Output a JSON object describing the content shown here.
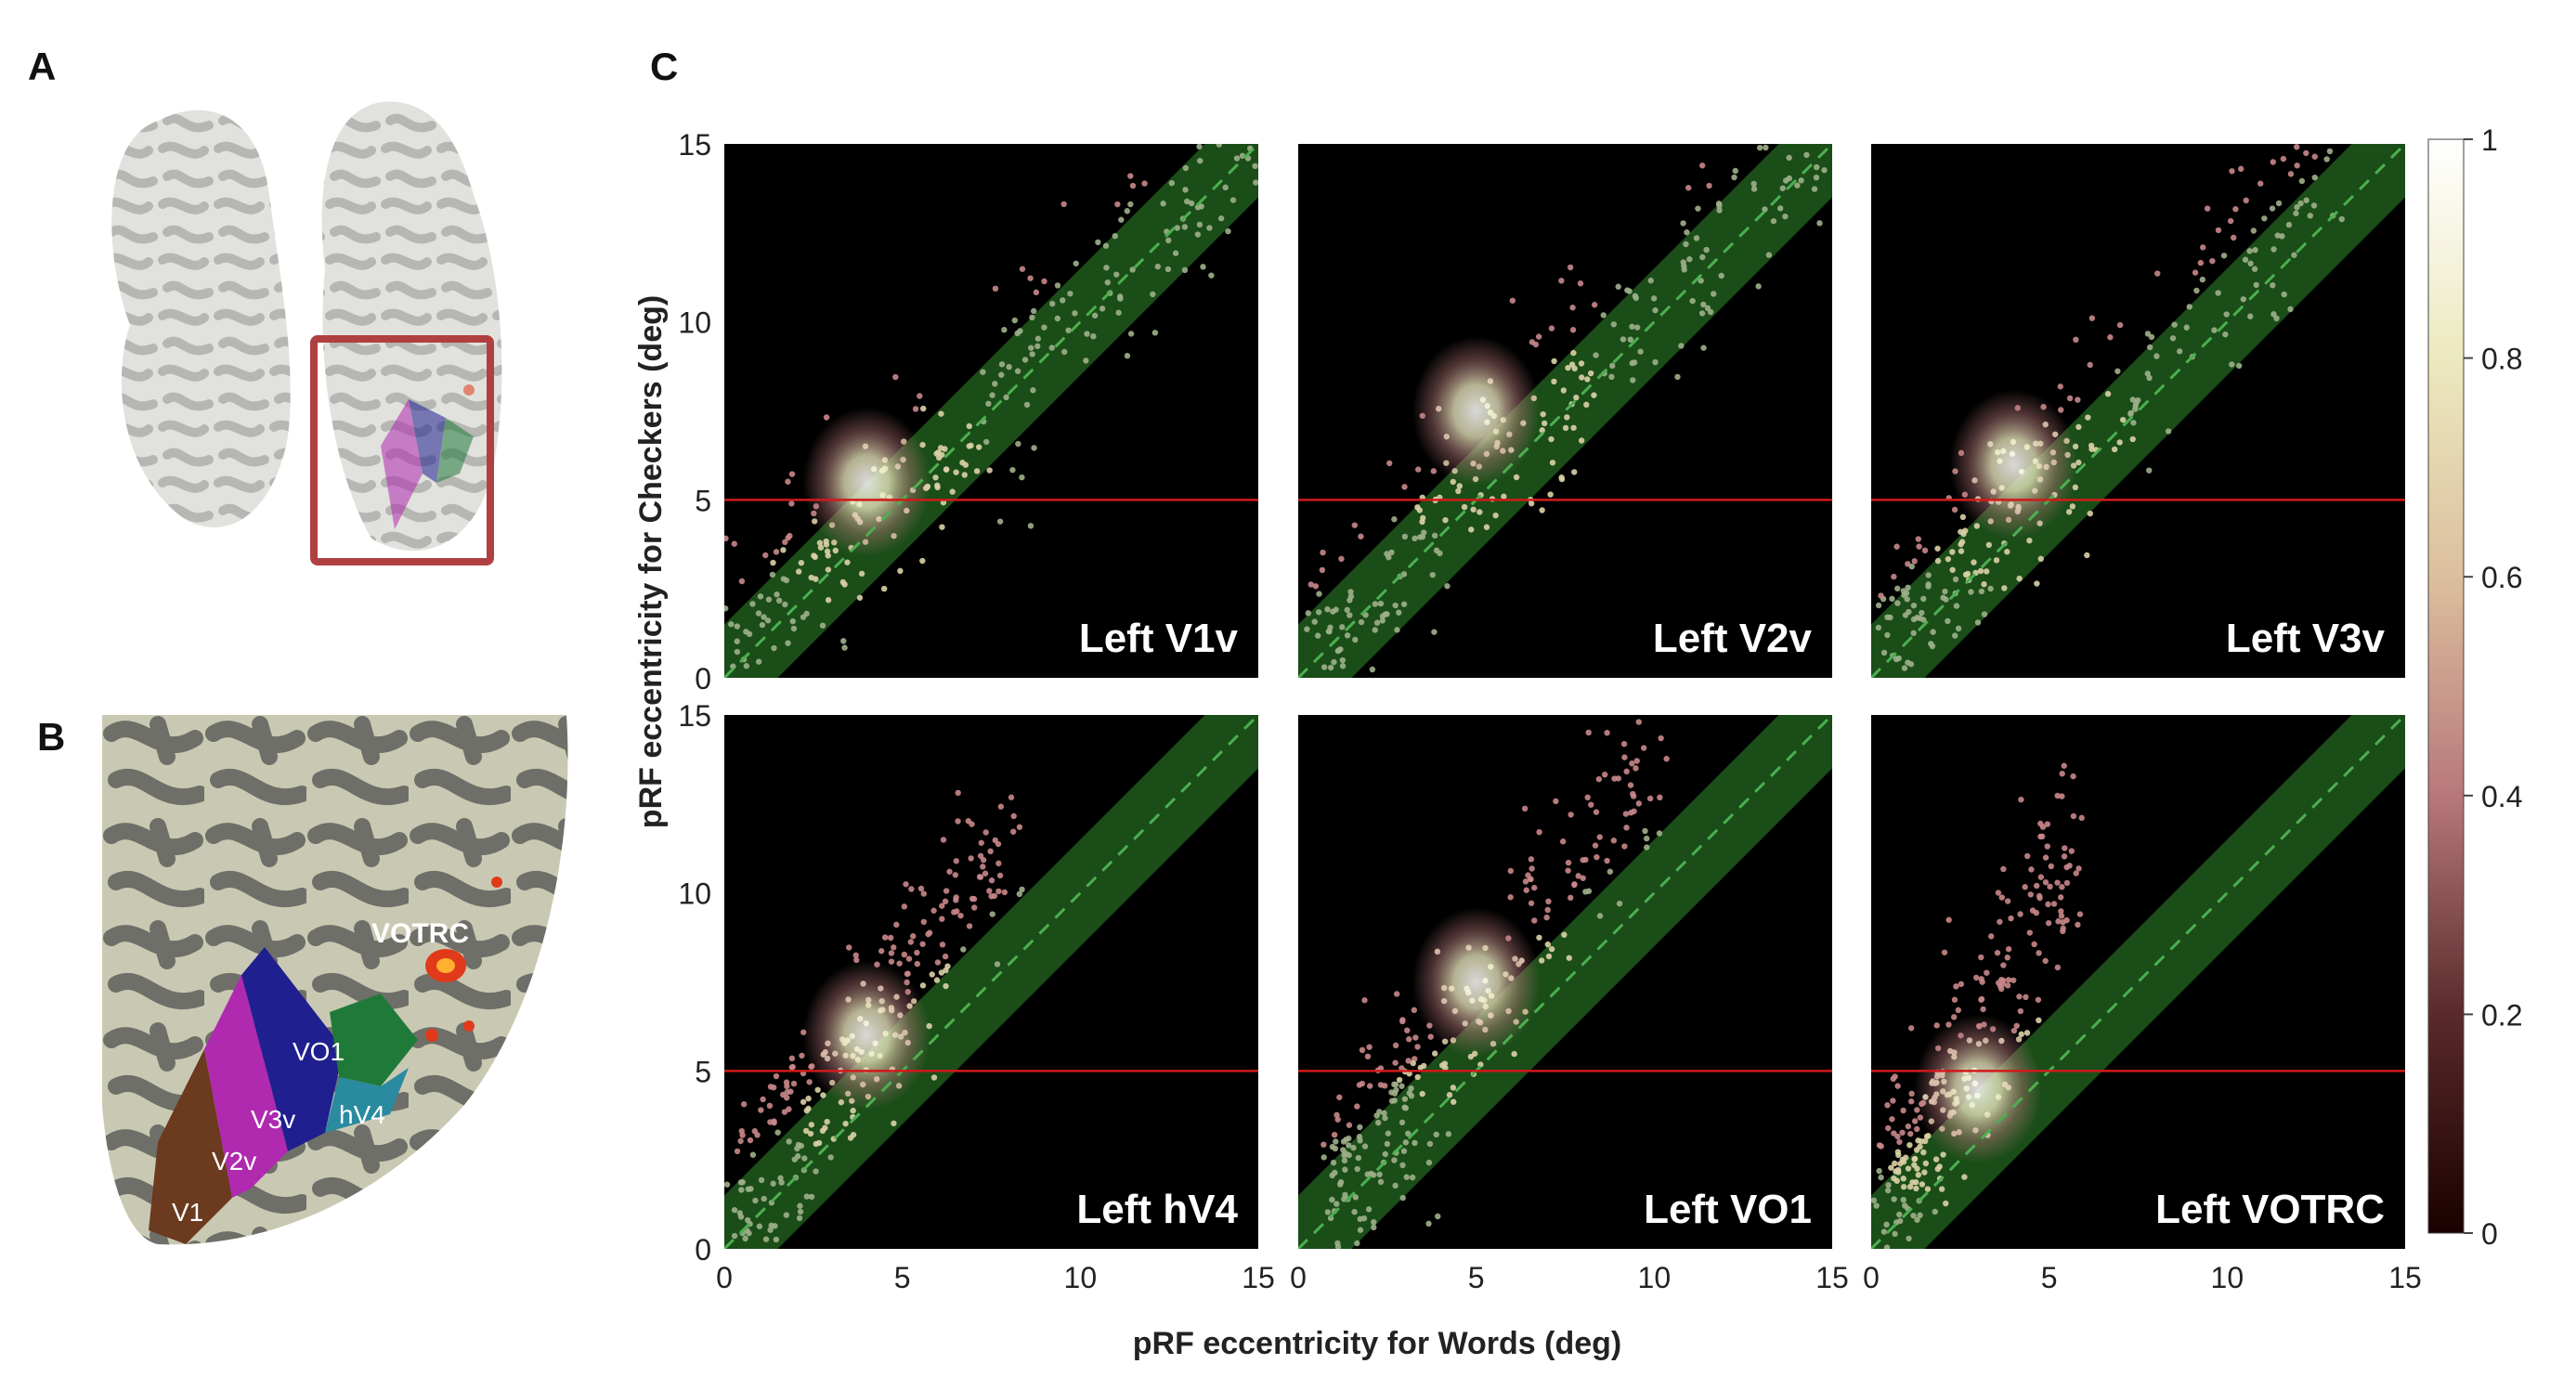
{
  "panels": {
    "a": {
      "letter": "A"
    },
    "b": {
      "letter": "B",
      "roi_labels": [
        "V1",
        "V2v",
        "V3v",
        "hV4",
        "VO1",
        "VOTRC"
      ]
    },
    "c": {
      "letter": "C"
    }
  },
  "colors": {
    "unity_band": "#1f5a1c",
    "unity_line": "#4caf50",
    "threshold_line": "#d11a1a",
    "plot_background": "#000000",
    "roi_v1": "#6b3a1f",
    "roi_v2v": "#b02ab0",
    "roi_v3v": "#1f1f8f",
    "roi_hv4": "#2a8aa0",
    "roi_vo1": "#1f7a3a",
    "roi_votrc": "#e03a1a"
  },
  "chart_data": [
    {
      "type": "heatmap",
      "title": "Left V1v",
      "xlim": [
        0,
        15
      ],
      "ylim": [
        0,
        15
      ],
      "threshold_y": 5,
      "unity_line": true,
      "density_peak": {
        "x": 4,
        "y": 5.5
      },
      "scatter_extent": {
        "x": [
          0.5,
          15
        ],
        "y": [
          0.5,
          15
        ]
      }
    },
    {
      "type": "heatmap",
      "title": "Left V2v",
      "xlim": [
        0,
        15
      ],
      "ylim": [
        0,
        15
      ],
      "threshold_y": 5,
      "unity_line": true,
      "density_peak": {
        "x": 5,
        "y": 7.5
      },
      "scatter_extent": {
        "x": [
          0.5,
          15
        ],
        "y": [
          0.5,
          15
        ]
      }
    },
    {
      "type": "heatmap",
      "title": "Left V3v",
      "xlim": [
        0,
        15
      ],
      "ylim": [
        0,
        15
      ],
      "threshold_y": 5,
      "unity_line": true,
      "density_peak": {
        "x": 4,
        "y": 6
      },
      "scatter_extent": {
        "x": [
          0.5,
          13
        ],
        "y": [
          0.5,
          15
        ]
      }
    },
    {
      "type": "heatmap",
      "title": "Left hV4",
      "xlim": [
        0,
        15
      ],
      "ylim": [
        0,
        15
      ],
      "threshold_y": 5,
      "unity_line": true,
      "density_peak": {
        "x": 4,
        "y": 6
      },
      "scatter_extent": {
        "x": [
          0.5,
          8
        ],
        "y": [
          0.5,
          13
        ]
      }
    },
    {
      "type": "heatmap",
      "title": "Left VO1",
      "xlim": [
        0,
        15
      ],
      "ylim": [
        0,
        15
      ],
      "threshold_y": 5,
      "unity_line": true,
      "density_peak": {
        "x": 5,
        "y": 7.5
      },
      "scatter_extent": {
        "x": [
          1,
          10
        ],
        "y": [
          1,
          15
        ]
      }
    },
    {
      "type": "heatmap",
      "title": "Left VOTRC",
      "xlim": [
        0,
        15
      ],
      "ylim": [
        0,
        15
      ],
      "threshold_y": 5,
      "unity_line": true,
      "density_peak": {
        "x": 3,
        "y": 4.5
      },
      "scatter_extent": {
        "x": [
          0.5,
          6
        ],
        "y": [
          0.5,
          15
        ]
      }
    }
  ],
  "axes": {
    "xlabel": "pRF eccentricity for Words (deg)",
    "ylabel": "pRF eccentricity for Checkers (deg)",
    "ticks": [
      0,
      5,
      10,
      15
    ],
    "y_tick_labels_top": [
      "15",
      "10",
      "5",
      "0"
    ],
    "y_tick_labels_bottom": [
      "15",
      "10",
      "5",
      "0"
    ],
    "x_tick_labels": [
      "0",
      "5",
      "10",
      "15"
    ]
  },
  "colorbar": {
    "ticks": [
      "1",
      "0.8",
      "0.6",
      "0.4",
      "0.2",
      "0"
    ],
    "values": [
      1,
      0.8,
      0.6,
      0.4,
      0.2,
      0
    ]
  }
}
